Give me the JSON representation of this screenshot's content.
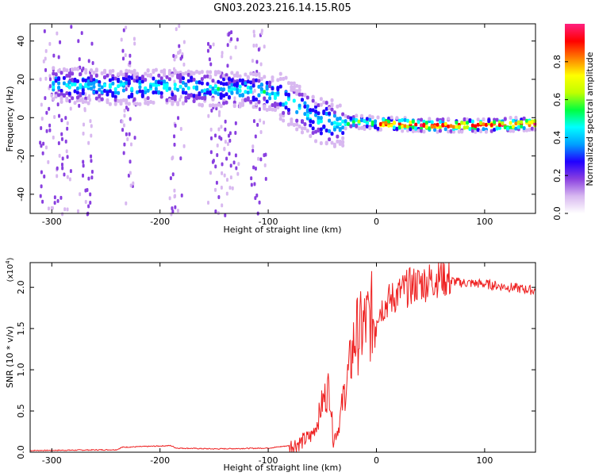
{
  "chart_data": [
    {
      "type": "heatmap",
      "title": "GN03.2023.216.14.15.R05",
      "xlabel": "Height of straight line (km)",
      "ylabel": "Frequency (Hz)",
      "xlim": [
        -320,
        147
      ],
      "ylim": [
        -50,
        49
      ],
      "xticks": [
        -300,
        -200,
        -100,
        0,
        100
      ],
      "xtick_labels": [
        "-300",
        "-200",
        "-100",
        "0",
        "100"
      ],
      "yticks": [
        -40,
        -20,
        0,
        20,
        40
      ],
      "ytick_labels": [
        "-40",
        "-20",
        "0",
        "20",
        "40"
      ],
      "colorbar": {
        "label": "Normalized spectral amplitude",
        "range": [
          0,
          1
        ],
        "ticks": [
          0.0,
          0.2,
          0.4,
          0.6,
          0.8
        ],
        "tick_labels": [
          "0.0",
          "0.2",
          "0.4",
          "0.6",
          "0.8"
        ],
        "colormap": [
          "#ffffff",
          "#d8b8f0",
          "#8a40e0",
          "#2000ff",
          "#00a0ff",
          "#00ffff",
          "#00ff40",
          "#c0ff00",
          "#ffff00",
          "#ff8000",
          "#ff0000",
          "#ff2080"
        ]
      },
      "ridge": {
        "x": [
          -290,
          -250,
          -200,
          -150,
          -110,
          -90,
          -75,
          -55,
          -40,
          -20,
          0,
          50,
          100,
          147
        ],
        "y": [
          18,
          17,
          17,
          16,
          15,
          12,
          6,
          0,
          -2,
          -1,
          -2,
          -3,
          -3,
          -2
        ]
      },
      "noise_bands_x": [
        -305,
        -290,
        -270,
        -230,
        -185,
        -150,
        -135,
        -110
      ]
    },
    {
      "type": "line",
      "title": "",
      "xlabel": "Height of straight line (km)",
      "ylabel": "SNR (10 * v/v)",
      "y_multiplier": "(x10",
      "y_multiplier_exp": "4",
      "y_multiplier_close": ")",
      "xlim": [
        -320,
        147
      ],
      "ylim": [
        0,
        2.3
      ],
      "xticks": [
        -300,
        -200,
        -100,
        0,
        100
      ],
      "xtick_labels": [
        "-300",
        "-200",
        "-100",
        "0",
        "100"
      ],
      "yticks": [
        0.0,
        0.5,
        1.0,
        1.5,
        2.0
      ],
      "ytick_labels": [
        "0.0",
        "0.5",
        "1.0",
        "1.5",
        "2.0"
      ],
      "series": [
        {
          "color": "#ee2020",
          "x": [
            -320,
            -240,
            -235,
            -190,
            -185,
            -150,
            -100,
            -80,
            -70,
            -60,
            -55,
            -50,
            -45,
            -43,
            -40,
            -35,
            -30,
            -25,
            -20,
            -15,
            -10,
            0,
            10,
            20,
            30,
            40,
            50,
            60,
            65,
            75,
            100,
            147
          ],
          "y": [
            0.02,
            0.03,
            0.06,
            0.08,
            0.05,
            0.04,
            0.05,
            0.08,
            0.12,
            0.2,
            0.35,
            0.6,
            0.75,
            0.8,
            0.15,
            0.3,
            0.7,
            1.0,
            1.4,
            1.45,
            1.55,
            1.7,
            1.82,
            1.92,
            2.0,
            2.05,
            2.08,
            2.15,
            2.1,
            2.06,
            2.04,
            1.96
          ]
        }
      ]
    }
  ]
}
